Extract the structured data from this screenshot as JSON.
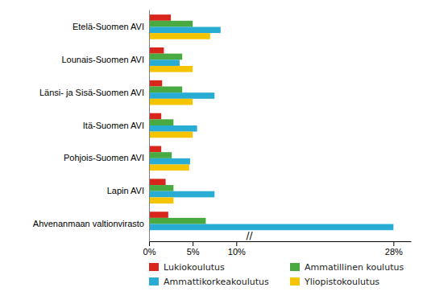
{
  "chart_data": {
    "type": "bar",
    "orientation": "horizontal",
    "categories": [
      "Etelä-Suomen AVI",
      "Lounais-Suomen AVI",
      "Länsi- ja Sisä-Suomen AVI",
      "Itä-Suomen AVI",
      "Pohjois-Suomen AVI",
      "Lapin AVI",
      "Ahvenanmaan valtionvirasto"
    ],
    "series": [
      {
        "name": "Lukiokoulutus",
        "color": "#d9261c",
        "values": [
          2.5,
          1.7,
          1.5,
          1.4,
          1.4,
          1.9,
          2.2
        ]
      },
      {
        "name": "Ammatillinen koulutus",
        "color": "#4aaa42",
        "values": [
          5.0,
          3.8,
          3.8,
          2.8,
          2.6,
          2.8,
          6.5
        ]
      },
      {
        "name": "Ammattikorkeakoulutus",
        "color": "#29acd4",
        "values": [
          8.2,
          3.5,
          7.5,
          5.5,
          4.7,
          7.5,
          28.0
        ]
      },
      {
        "name": "Yliopistokoulutus",
        "color": "#f5c400",
        "values": [
          7.0,
          5.0,
          5.0,
          5.0,
          4.6,
          2.8,
          0.0
        ]
      }
    ],
    "xlim": [
      0,
      30
    ],
    "xticks": [
      {
        "value": 0,
        "label": "0%"
      },
      {
        "value": 5,
        "label": "5%"
      },
      {
        "value": 10,
        "label": "10%"
      },
      {
        "value": 28,
        "label": "28%"
      }
    ],
    "annotations": [
      {
        "text": "//",
        "x": 11.5
      }
    ],
    "grid": false,
    "legend": "bottom"
  }
}
